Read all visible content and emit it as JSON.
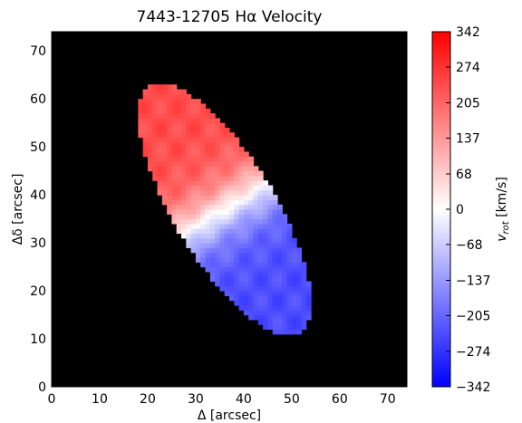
{
  "chart_data": {
    "type": "heatmap",
    "title": "7443-12705 Hα Velocity",
    "xlabel": "Δ [arcsec]",
    "ylabel": "Δδ [arcsec]",
    "xlim": [
      0,
      74
    ],
    "ylim": [
      0,
      74
    ],
    "x_ticks": [
      "0",
      "10",
      "20",
      "30",
      "40",
      "50",
      "60",
      "70"
    ],
    "y_ticks": [
      "0",
      "10",
      "20",
      "30",
      "40",
      "50",
      "60",
      "70"
    ],
    "background": "#000000",
    "colorbar": {
      "label": "v_rot [km/s]",
      "label_main": "v",
      "label_sub": "rot",
      "label_unit": " [km/s]",
      "colormap": "bwr",
      "range": [
        -342,
        342
      ],
      "tick_values": [
        342,
        274,
        205,
        137,
        68,
        0,
        -68,
        -137,
        -205,
        -274,
        -342
      ],
      "tick_labels": [
        "342",
        "274",
        "205",
        "137",
        "68",
        "0",
        "−68",
        "−137",
        "−205",
        "−274",
        "−342"
      ]
    },
    "galaxy": {
      "center": [
        36,
        37
      ],
      "major_axis_angle_deg": 121,
      "semi_major_arcsec": 30,
      "semi_minor_arcsec": 10.5,
      "pixel_size_arcsec": 1,
      "velocity_max_km_s": 240,
      "velocity_turnover_arcsec": 7,
      "approaching_side": "southeast (lower right)",
      "receding_side": "northwest (upper left)",
      "velocity_samples": [
        {
          "x": 22,
          "y": 58,
          "v": 210
        },
        {
          "x": 26,
          "y": 50,
          "v": 190
        },
        {
          "x": 32,
          "y": 44,
          "v": 130
        },
        {
          "x": 37,
          "y": 38,
          "v": 10
        },
        {
          "x": 42,
          "y": 33,
          "v": -110
        },
        {
          "x": 48,
          "y": 25,
          "v": -180
        },
        {
          "x": 52,
          "y": 18,
          "v": -200
        },
        {
          "x": 50,
          "y": 11,
          "v": -320
        }
      ]
    }
  }
}
